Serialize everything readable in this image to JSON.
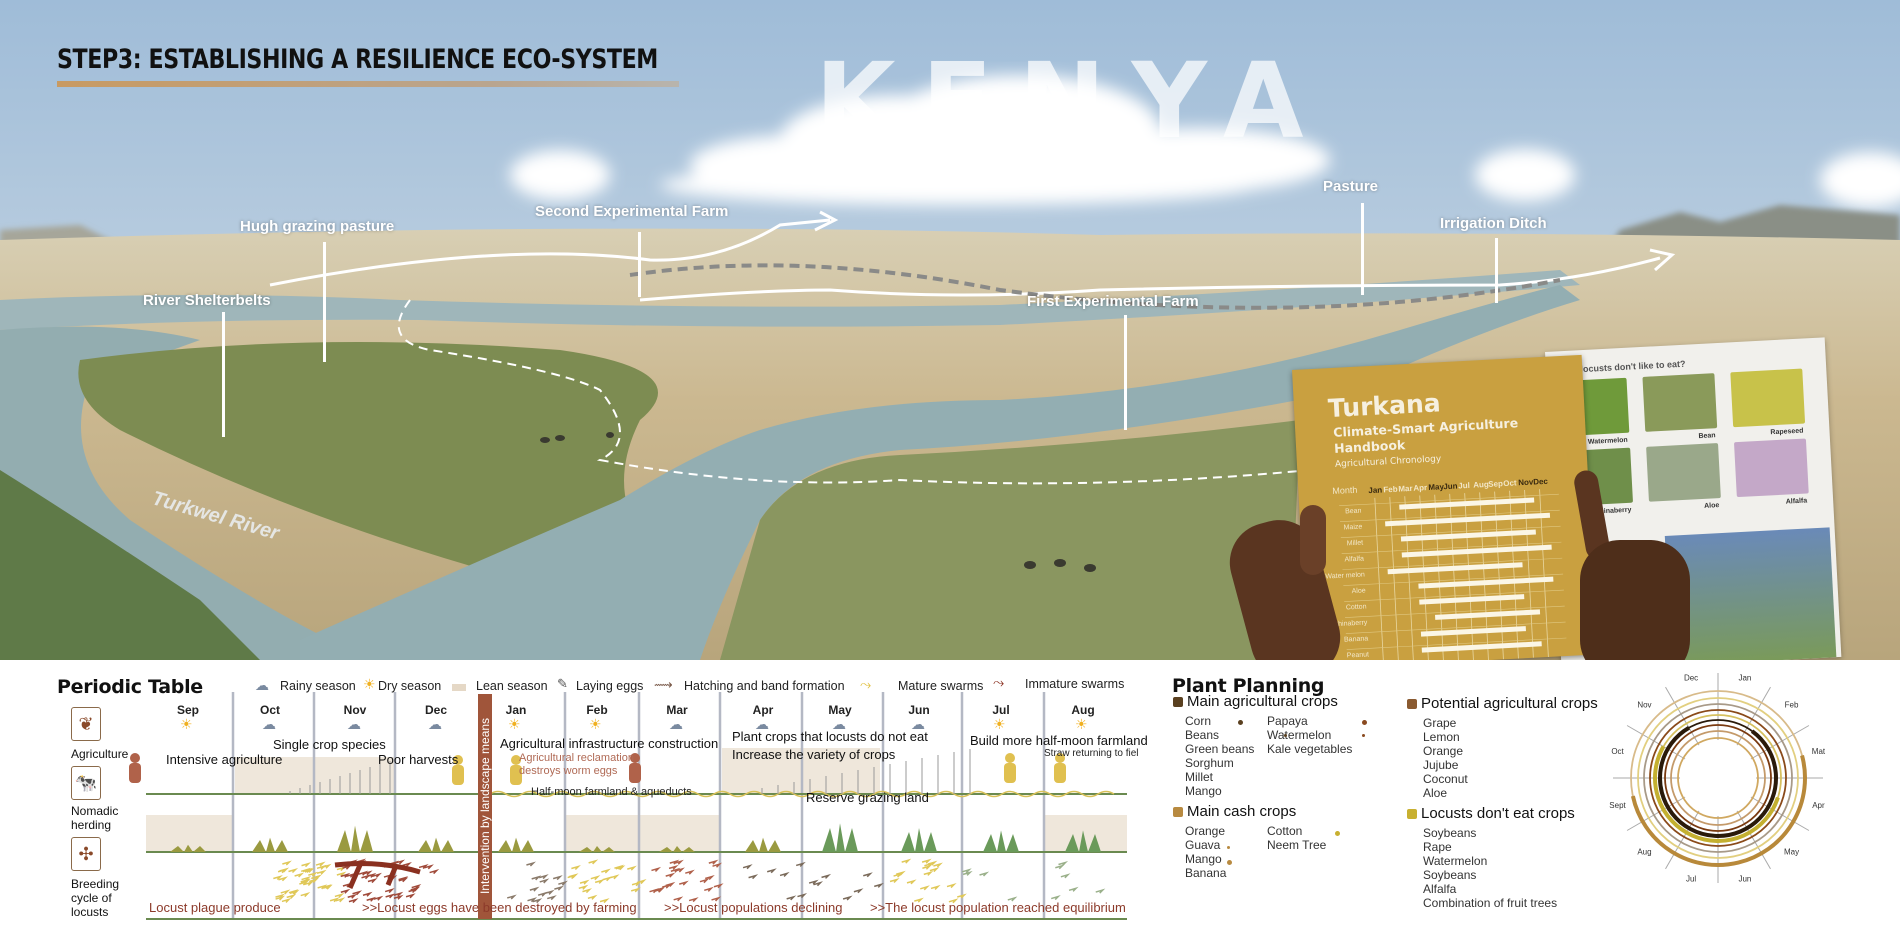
{
  "header": {
    "title": "STEP3: ESTABLISHING A RESILIENCE ECO-SYSTEM",
    "watermark": "KENYA"
  },
  "scene_labels": {
    "hugh_grazing": "Hugh grazing pasture",
    "river_shelterbelts": "River Shelterbelts",
    "second_farm": "Second Experimental Farm",
    "first_farm": "First Experimental Farm",
    "pasture": "Pasture",
    "irrigation": "Irrigation Ditch",
    "river": "Turkwel River"
  },
  "handbook": {
    "title": "Turkana",
    "subtitle1": "Climate-Smart Agriculture",
    "subtitle2": "Handbook",
    "section": "Agricultural Chronology",
    "month_label": "Month",
    "months": [
      "Jan",
      "Feb",
      "Mar",
      "Apr",
      "May",
      "Jun",
      "Jul",
      "Aug",
      "Sep",
      "Oct",
      "Nov",
      "Dec"
    ],
    "crops": [
      {
        "name": "Bean",
        "start": 3,
        "end": 11
      },
      {
        "name": "Maize",
        "start": 2,
        "end": 12
      },
      {
        "name": "Millet",
        "start": 3,
        "end": 11
      },
      {
        "name": "Alfalfa",
        "start": 3,
        "end": 12
      },
      {
        "name": "Water melon",
        "start": 2,
        "end": 10
      },
      {
        "name": "Aloe",
        "start": 4,
        "end": 12
      },
      {
        "name": "Cotton",
        "start": 4,
        "end": 10
      },
      {
        "name": "Chinaberry",
        "start": 5,
        "end": 11
      },
      {
        "name": "Banana",
        "start": 4,
        "end": 10
      },
      {
        "name": "Peanut",
        "start": 4,
        "end": 11
      }
    ],
    "right_page_title": "What locusts don't like to eat?",
    "photos": [
      {
        "label": "Watermelon",
        "color": "#6f9a3a"
      },
      {
        "label": "Bean",
        "color": "#8a9a5a"
      },
      {
        "label": "Rapeseed",
        "color": "#c8c24a"
      },
      {
        "label": "Chinaberry",
        "color": "#6f8f4a"
      },
      {
        "label": "Aloe",
        "color": "#9aa88a"
      },
      {
        "label": "Alfalfa",
        "color": "#c4a8c8"
      }
    ]
  },
  "periodic_table": {
    "title": "Periodic Table",
    "legend": {
      "rainy": "Rainy season",
      "dry": "Dry season",
      "lean": "Lean season",
      "laying": "Laying eggs",
      "hatching": "Hatching and band formation",
      "mature": "Mature swarms",
      "immature": "Immature swarms"
    },
    "categories": [
      {
        "label": "Agriculture",
        "icon": "sprout-icon"
      },
      {
        "label": "Nomadic herding",
        "icon": "cow-icon"
      },
      {
        "label": "Breeding cycle of locusts",
        "icon": "locust-icon"
      }
    ],
    "months": [
      {
        "name": "Sep",
        "weather": "dry"
      },
      {
        "name": "Oct",
        "weather": "rainy"
      },
      {
        "name": "Nov",
        "weather": "rainy"
      },
      {
        "name": "Dec",
        "weather": "rainy"
      },
      {
        "name": "Jan",
        "weather": "dry"
      },
      {
        "name": "Feb",
        "weather": "dry"
      },
      {
        "name": "Mar",
        "weather": "rainy"
      },
      {
        "name": "Apr",
        "weather": "rainy"
      },
      {
        "name": "May",
        "weather": "rainy"
      },
      {
        "name": "Jun",
        "weather": "rainy"
      },
      {
        "name": "Jul",
        "weather": "dry"
      },
      {
        "name": "Aug",
        "weather": "dry"
      }
    ],
    "intervention": "Intervention by landscape means",
    "notes": {
      "intensive": "Intensive agriculture",
      "single_crop": "Single crop species",
      "poor_harvests": "Poor harvests",
      "infrastructure": "Agricultural infrastructure construction",
      "reclamation1": "Agricultural reclamation",
      "reclamation2": "destroys worm eggs",
      "plant_crops": "Plant crops that locusts do not eat",
      "variety": "Increase the variety of crops",
      "build_more": "Build more half-moon farmland",
      "straw": "Straw returning to fiel",
      "half_moon": "Half-moon farmland & aqueducts",
      "reserve": "Reserve grazing land",
      "plague": "Locust plague produce",
      "eggs_destroyed": ">>Locust eggs have been destroyed by farming",
      "declining": ">>Locust populations declining",
      "equilibrium": ">>The locust population reached equilibrium"
    }
  },
  "plant_planning": {
    "title": "Plant Planning",
    "groups": [
      {
        "heading": "Main agricultural crops",
        "color": "#5a4020",
        "col1": [
          "Corn",
          "Beans",
          "Green beans",
          "Sorghum",
          "Millet",
          "Mango"
        ],
        "col2": [
          "Papaya",
          "Watermelon",
          "Kale vegetables"
        ]
      },
      {
        "heading": "Main cash crops",
        "color": "#b88a40",
        "col1": [
          "Orange",
          "Guava",
          "Mango",
          "Banana"
        ],
        "col2": [
          "Cotton",
          "Neem Tree"
        ]
      },
      {
        "heading": "Potential agricultural crops",
        "color": "#8a5a30",
        "col1": [
          "Grape",
          "Lemon",
          "Orange",
          "Jujube",
          "Coconut",
          "Aloe"
        ],
        "col2": []
      },
      {
        "heading": "Locusts don't eat crops",
        "color": "#c8b030",
        "col1": [
          "Soybeans",
          "Rape",
          "Watermelon",
          "Soybeans",
          "Alfalfa",
          "Combination of fruit trees"
        ],
        "col2": []
      }
    ]
  },
  "crop_calendar": {
    "months": [
      "Jan",
      "Feb",
      "Mat",
      "Apr",
      "May",
      "Jun",
      "Jul",
      "Aug",
      "Sept",
      "Oct",
      "Nov",
      "Dec"
    ],
    "rings": [
      {
        "color": "#d8bb8a",
        "active": [
          2.5,
          8.6
        ],
        "active_color": "#b8893a"
      },
      {
        "color": "#e2cf80"
      },
      {
        "color": "#a89a88"
      },
      {
        "color": "#8a4a1a"
      },
      {
        "color": "#d6c060",
        "active": [
          3.6,
          10.0
        ],
        "active_color": "#c4b030"
      },
      {
        "color": "#2a1a0a",
        "active": [
          1.2,
          11.0
        ],
        "active_color": "#2a1a0a"
      },
      {
        "color": "#7a3a10"
      },
      {
        "color": "#c49a6a"
      },
      {
        "color": "#d0a860"
      }
    ]
  },
  "colors": {
    "accent_bar": "#c89a62",
    "intervention": "#a0553a",
    "locust_text": "#8c3a2a",
    "ground_line": "#6a8a50",
    "lean": "#ece4d8"
  }
}
